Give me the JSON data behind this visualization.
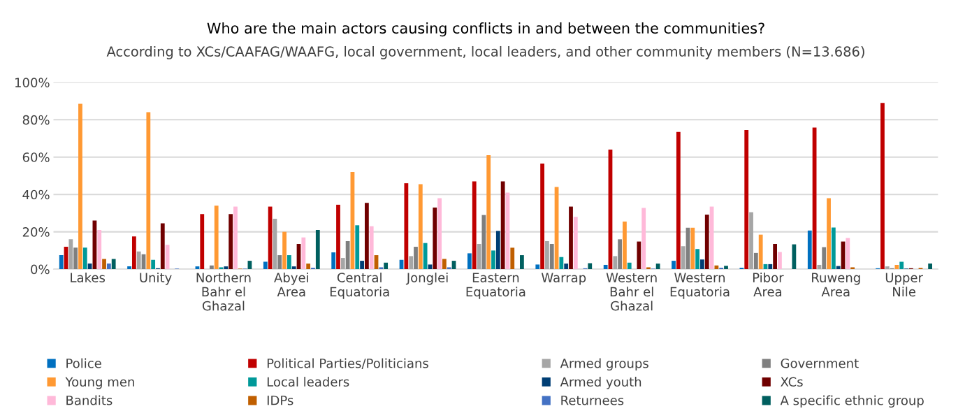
{
  "chart_data": {
    "type": "bar",
    "title": "Who are the main actors causing conflicts in and between the communities?",
    "subtitle": "According to XCs/CAAFAG/WAAFG, local government, local leaders, and other community members (N=13.686)",
    "categories": [
      "Lakes",
      "Unity",
      "Northern Bahr el Ghazal",
      "Abyei Area",
      "Central Equatoria",
      "Jonglei",
      "Eastern Equatoria",
      "Warrap",
      "Western Bahr el Ghazal",
      "Western Equatoria",
      "Pibor Area",
      "Ruweng Area",
      "Upper Nile"
    ],
    "series": [
      {
        "name": "Police",
        "color": "#0070c0",
        "values": [
          7.5,
          1.5,
          1.5,
          4,
          9,
          5,
          8.5,
          2.5,
          2.3,
          4.5,
          0.8,
          20.7,
          0.5
        ]
      },
      {
        "name": "Political Parties/Politicians",
        "color": "#c00000",
        "values": [
          12,
          17.5,
          29.5,
          33.5,
          34.5,
          46,
          47,
          56.5,
          64,
          73.5,
          74.5,
          75.8,
          89
        ]
      },
      {
        "name": "Armed groups",
        "color": "#a6a6a6",
        "values": [
          16,
          9.5,
          null,
          27,
          6,
          7,
          13.5,
          15,
          7,
          12.3,
          30.5,
          2.3,
          1.5
        ]
      },
      {
        "name": "Government",
        "color": "#7f7f7f",
        "values": [
          11.5,
          8,
          2,
          7.5,
          15,
          12,
          29,
          13.5,
          16,
          22.2,
          8.7,
          11.8,
          0.5
        ]
      },
      {
        "name": "Young men",
        "color": "#ff9933",
        "values": [
          88.5,
          84,
          34,
          20,
          52,
          45.5,
          61,
          44,
          25.5,
          22.2,
          18.5,
          38,
          2.3
        ]
      },
      {
        "name": "Local leaders",
        "color": "#009999",
        "values": [
          11.5,
          5,
          1,
          7.5,
          23.5,
          14,
          10,
          6.5,
          3.5,
          10.8,
          2.7,
          22.3,
          4
        ]
      },
      {
        "name": "Armed youth",
        "color": "#003f75",
        "values": [
          3,
          0.5,
          1.5,
          1.5,
          4.5,
          2.5,
          20.5,
          3,
          0,
          5.2,
          2.7,
          1.7,
          0.3
        ]
      },
      {
        "name": "XCs",
        "color": "#700000",
        "values": [
          26,
          24.5,
          29.5,
          13.5,
          35.5,
          33,
          47,
          33.5,
          14.8,
          29.2,
          13.5,
          14.8,
          0.5
        ]
      },
      {
        "name": "Bandits",
        "color": "#ffb9d9",
        "values": [
          21,
          13,
          33.5,
          17,
          23,
          38,
          41,
          28,
          32.8,
          33.5,
          9.2,
          16.7,
          null
        ]
      },
      {
        "name": "IDPs",
        "color": "#c05f00",
        "values": [
          5.5,
          0,
          0.3,
          3,
          7.5,
          5.5,
          11.5,
          null,
          1,
          2,
          0,
          1,
          0.7
        ]
      },
      {
        "name": "Returnees",
        "color": "#4472c4",
        "values": [
          3,
          0.3,
          0.3,
          0.8,
          1,
          1,
          0,
          0.5,
          0.3,
          0.8,
          0,
          0,
          0
        ]
      },
      {
        "name": "A specific ethnic group",
        "color": "#005f5f",
        "values": [
          5.5,
          0,
          4.5,
          21,
          3.5,
          4.5,
          7.5,
          3.2,
          3,
          1.8,
          13.3,
          0,
          3
        ]
      }
    ],
    "ylim": [
      0,
      100
    ],
    "yticks": [
      {
        "value": 0,
        "label": "0%"
      },
      {
        "value": 20,
        "label": "20%"
      },
      {
        "value": 40,
        "label": "40%"
      },
      {
        "value": 60,
        "label": "60%"
      },
      {
        "value": 80,
        "label": "80%"
      },
      {
        "value": 100,
        "label": "100%"
      }
    ],
    "grid": "y",
    "legend": "bottom"
  }
}
